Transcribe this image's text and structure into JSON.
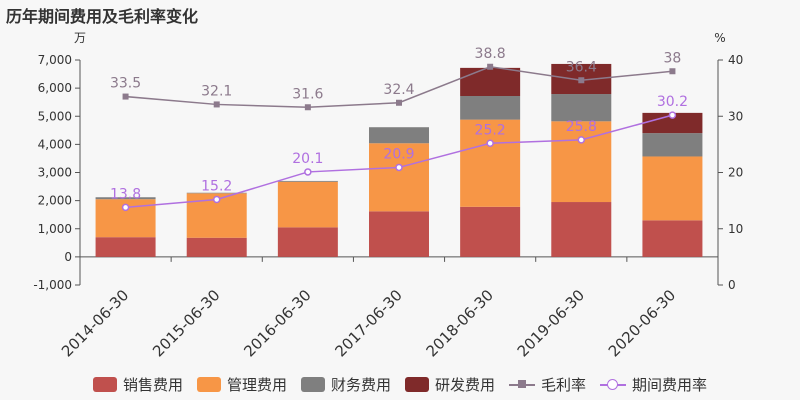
{
  "chart_data": {
    "type": "bar",
    "title": "历年期间费用及毛利率变化",
    "ylabel_left": "万",
    "ylabel_right": "%",
    "ylim_left": [
      -1000,
      7000
    ],
    "yticks_left": [
      "-1,000",
      "0",
      "1,000",
      "2,000",
      "3,000",
      "4,000",
      "5,000",
      "6,000",
      "7,000"
    ],
    "ylim_right": [
      0,
      40
    ],
    "yticks_right": [
      "0",
      "10",
      "20",
      "30",
      "40"
    ],
    "categories": [
      "2014-06-30",
      "2015-06-30",
      "2016-06-30",
      "2017-06-30",
      "2018-06-30",
      "2019-06-30",
      "2020-06-30"
    ],
    "series": [
      {
        "name": "销售费用",
        "kind": "bar",
        "axis": "left",
        "color": "#c0504d",
        "values": [
          700,
          680,
          1050,
          1620,
          1780,
          1950,
          1300
        ]
      },
      {
        "name": "管理费用",
        "kind": "bar",
        "axis": "left",
        "color": "#f79646",
        "values": [
          1350,
          1580,
          1620,
          2420,
          3100,
          2870,
          2270
        ]
      },
      {
        "name": "财务费用",
        "kind": "bar",
        "axis": "left",
        "color": "#7f7f7f",
        "values": [
          70,
          20,
          30,
          570,
          840,
          970,
          830
        ]
      },
      {
        "name": "研发费用",
        "kind": "bar",
        "axis": "left",
        "color": "#7f2a2a",
        "values": [
          0,
          0,
          0,
          0,
          1000,
          1070,
          720
        ]
      },
      {
        "name": "毛利率",
        "kind": "line",
        "axis": "right",
        "color": "#8c7a8c",
        "marker": "square",
        "values": [
          33.5,
          32.1,
          31.6,
          32.4,
          38.8,
          36.4,
          38
        ],
        "labels": [
          "33.5",
          "32.1",
          "31.6",
          "32.4",
          "38.8",
          "36.4",
          "38"
        ]
      },
      {
        "name": "期间费用率",
        "kind": "line",
        "axis": "right",
        "color": "#b070e0",
        "marker": "circle",
        "values": [
          13.8,
          15.2,
          20.1,
          20.9,
          25.2,
          25.8,
          30.2
        ],
        "labels": [
          "13.8",
          "15.2",
          "20.1",
          "20.9",
          "25.2",
          "25.8",
          "30.2"
        ]
      }
    ]
  }
}
